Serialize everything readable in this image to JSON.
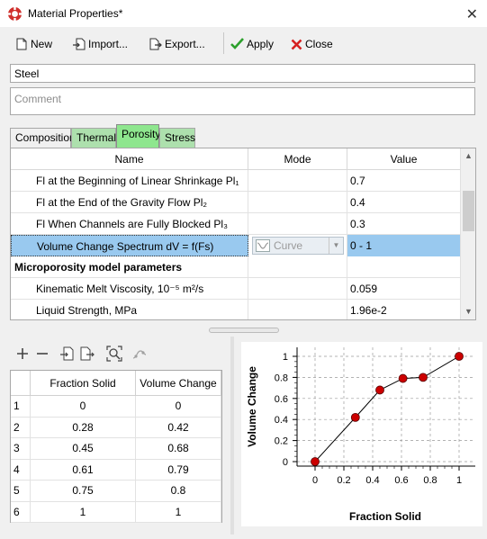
{
  "window": {
    "title": "Material Properties*"
  },
  "toolbar": {
    "new": "New",
    "import": "Import...",
    "export": "Export...",
    "apply": "Apply",
    "close": "Close"
  },
  "material": {
    "name": "Steel",
    "comment_placeholder": "Comment"
  },
  "tabs": [
    "Composition",
    "Thermal",
    "Porosity",
    "Stress"
  ],
  "grid": {
    "headers": [
      "Name",
      "Mode",
      "Value"
    ],
    "rows": [
      {
        "name": "Fl at the Beginning of Linear Shrinkage Pl₁",
        "mode": "",
        "value": "0.7"
      },
      {
        "name": "Fl at the End of the Gravity Flow Pl₂",
        "mode": "",
        "value": "0.4"
      },
      {
        "name": "Fl When Channels are Fully Blocked Pl₃",
        "mode": "",
        "value": "0.3"
      },
      {
        "name": "Volume Change Spectrum dV = f(Fs)",
        "mode": "Curve",
        "value": "0 - 1"
      },
      {
        "name": "Microporosity model parameters",
        "mode": "",
        "value": ""
      },
      {
        "name": "Kinematic Melt Viscosity, 10⁻⁵ m²/s",
        "mode": "",
        "value": "0.059"
      },
      {
        "name": "Liquid Strength, MPa",
        "mode": "",
        "value": "1.96e-2"
      }
    ]
  },
  "table": {
    "headers": [
      "Fraction Solid",
      "Volume Change"
    ],
    "rows": [
      {
        "idx": "1",
        "fs": "0",
        "vc": "0"
      },
      {
        "idx": "2",
        "fs": "0.28",
        "vc": "0.42"
      },
      {
        "idx": "3",
        "fs": "0.45",
        "vc": "0.68"
      },
      {
        "idx": "4",
        "fs": "0.61",
        "vc": "0.79"
      },
      {
        "idx": "5",
        "fs": "0.75",
        "vc": "0.8"
      },
      {
        "idx": "6",
        "fs": "1",
        "vc": "1"
      }
    ]
  },
  "chart_data": {
    "type": "line",
    "x": [
      0,
      0.28,
      0.45,
      0.61,
      0.75,
      1
    ],
    "y": [
      0,
      0.42,
      0.68,
      0.79,
      0.8,
      1
    ],
    "xlabel": "Fraction Solid",
    "ylabel": "Volume Change",
    "xlim": [
      0,
      1
    ],
    "ylim": [
      0,
      1
    ],
    "xticks": [
      "0",
      "0.2",
      "0.4",
      "0.6",
      "0.8",
      "1"
    ],
    "yticks": [
      "0",
      "0.2",
      "0.4",
      "0.6",
      "0.8",
      "1"
    ],
    "grid": true,
    "line_color": "#000000",
    "marker_color": "#cc0000"
  },
  "colors": {
    "tab_active": "#8ee68e",
    "tab_green": "#ade0ad",
    "selected_row": "#99c9ef",
    "apply_green": "#2ca02c",
    "close_red": "#d62020",
    "title_icon_red": "#d0302c"
  }
}
